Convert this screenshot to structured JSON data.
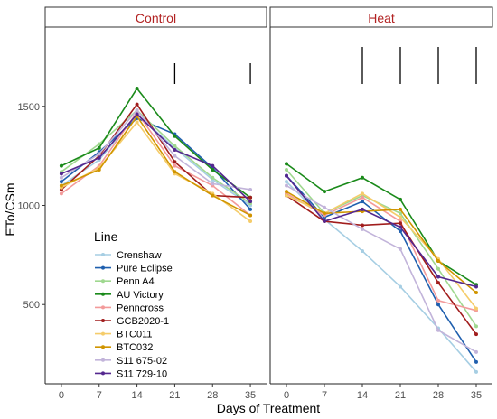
{
  "chart_data": {
    "type": "line",
    "xlabel": "Days of Treatment",
    "ylabel": "ETo/CSm",
    "x_ticks": [
      0,
      7,
      14,
      21,
      28,
      35
    ],
    "y_ticks": [
      500,
      1000,
      1500
    ],
    "xlim": [
      -3,
      38
    ],
    "ylim": [
      100,
      1900
    ],
    "legend_title": "Line",
    "legend_position": "inside-bottom-left",
    "panels": [
      {
        "title": "Control",
        "significance_days": [
          21,
          35
        ],
        "series": [
          {
            "name": "Crenshaw",
            "color": "#a6cee3",
            "values": [
              1100,
              1230,
              1460,
              1290,
              1130,
              1000
            ]
          },
          {
            "name": "Pure Eclipse",
            "color": "#1f5fae",
            "values": [
              1120,
              1270,
              1440,
              1360,
              1190,
              980
            ]
          },
          {
            "name": "Penn A4",
            "color": "#9fd88f",
            "values": [
              1170,
              1310,
              1480,
              1300,
              1140,
              1010
            ]
          },
          {
            "name": "AU Victory",
            "color": "#1a8a1a",
            "values": [
              1200,
              1290,
              1590,
              1350,
              1180,
              1040
            ]
          },
          {
            "name": "Penncross",
            "color": "#f39a9a",
            "values": [
              1060,
              1200,
              1470,
              1200,
              1100,
              950
            ]
          },
          {
            "name": "GCB2020-1",
            "color": "#a11d1d",
            "values": [
              1080,
              1250,
              1510,
              1220,
              1050,
              1040
            ]
          },
          {
            "name": "BTC011",
            "color": "#f5cc6a",
            "values": [
              1090,
              1190,
              1420,
              1160,
              1060,
              920
            ]
          },
          {
            "name": "BTC032",
            "color": "#d09500",
            "values": [
              1100,
              1180,
              1450,
              1170,
              1050,
              950
            ]
          },
          {
            "name": "S11 675-02",
            "color": "#c2b4da",
            "values": [
              1140,
              1260,
              1480,
              1250,
              1110,
              1080
            ]
          },
          {
            "name": "S11 729-10",
            "color": "#54278f",
            "values": [
              1160,
              1240,
              1460,
              1280,
              1200,
              1020
            ]
          }
        ]
      },
      {
        "title": "Heat",
        "significance_days": [
          14,
          21,
          28,
          35
        ],
        "series": [
          {
            "name": "Crenshaw",
            "color": "#a6cee3",
            "values": [
              1120,
              930,
              770,
              590,
              380,
              160
            ]
          },
          {
            "name": "Pure Eclipse",
            "color": "#1f5fae",
            "values": [
              1150,
              940,
              1020,
              870,
              500,
              210
            ]
          },
          {
            "name": "Penn A4",
            "color": "#9fd88f",
            "values": [
              1180,
              960,
              1050,
              960,
              680,
              390
            ]
          },
          {
            "name": "AU Victory",
            "color": "#1a8a1a",
            "values": [
              1210,
              1070,
              1140,
              1030,
              720,
              600
            ]
          },
          {
            "name": "Penncross",
            "color": "#f39a9a",
            "values": [
              1060,
              950,
              1040,
              920,
              520,
              470
            ]
          },
          {
            "name": "GCB2020-1",
            "color": "#a11d1d",
            "values": [
              1050,
              920,
              900,
              910,
              610,
              350
            ]
          },
          {
            "name": "BTC011",
            "color": "#f5cc6a",
            "values": [
              1050,
              960,
              1060,
              940,
              730,
              480
            ]
          },
          {
            "name": "BTC032",
            "color": "#d09500",
            "values": [
              1070,
              960,
              970,
              980,
              720,
              560
            ]
          },
          {
            "name": "S11 675-02",
            "color": "#c2b4da",
            "values": [
              1100,
              990,
              880,
              780,
              370,
              260
            ]
          },
          {
            "name": "S11 729-10",
            "color": "#54278f",
            "values": [
              1150,
              920,
              980,
              890,
              640,
              590
            ]
          }
        ]
      }
    ]
  }
}
